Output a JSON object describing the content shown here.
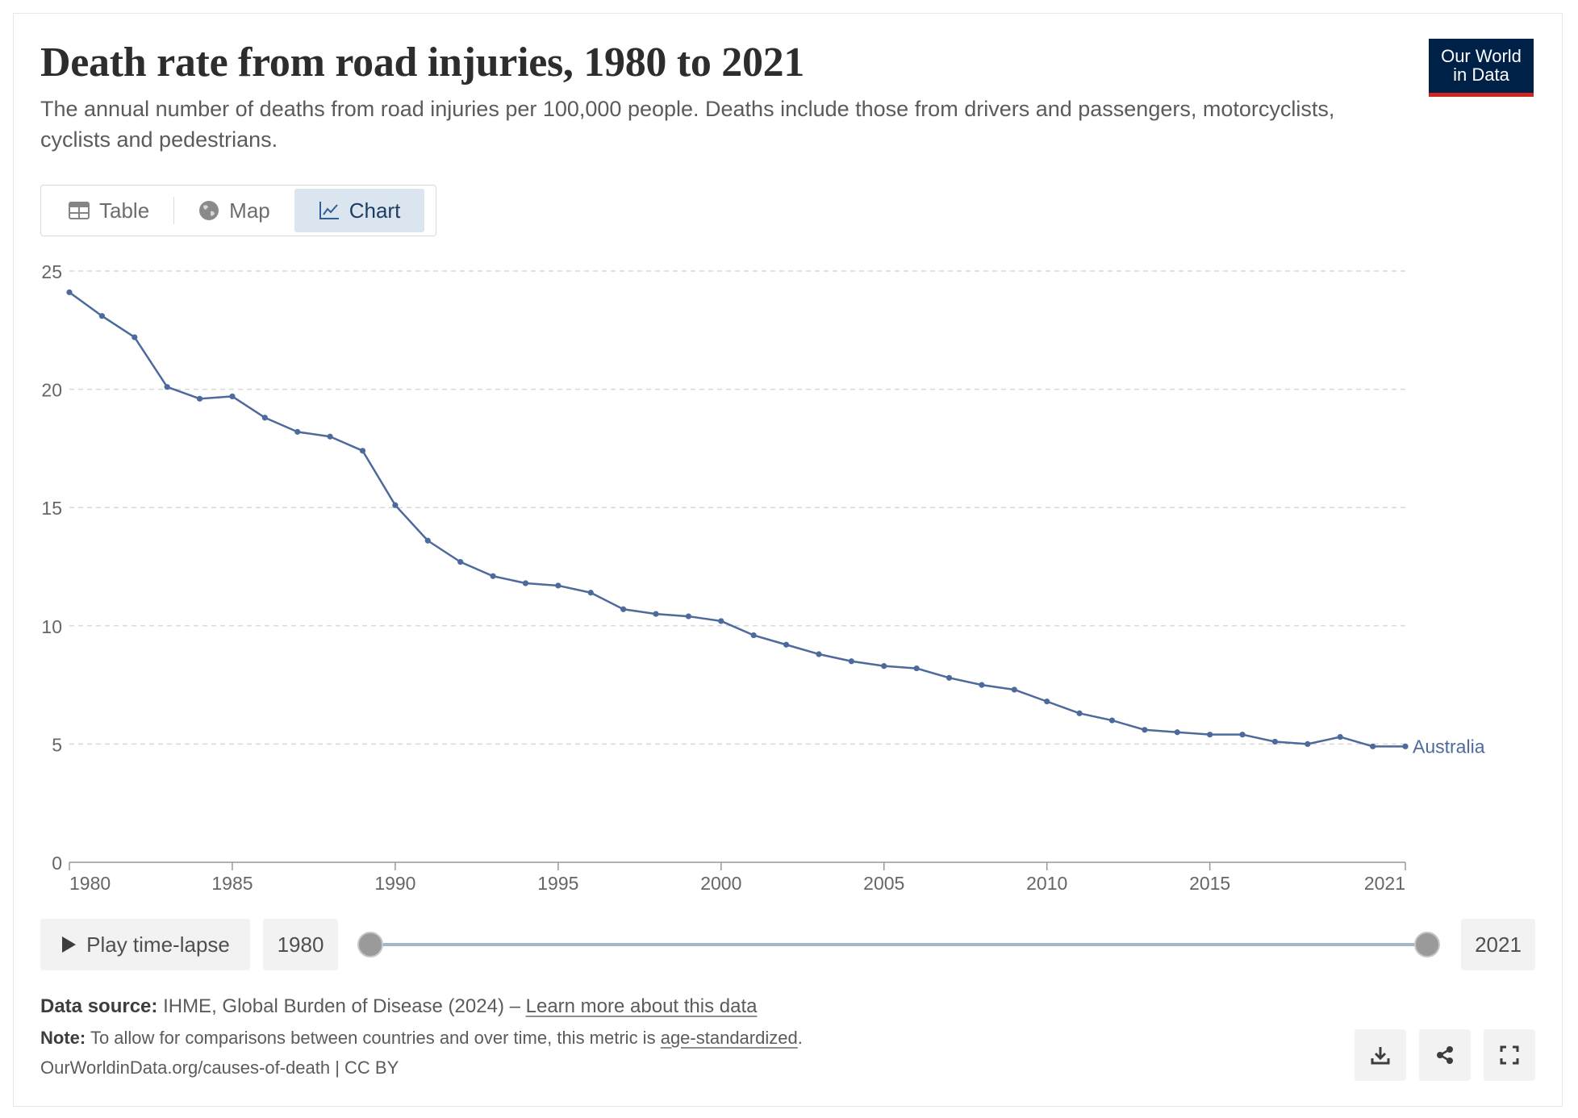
{
  "header": {
    "title": "Death rate from road injuries, 1980 to 2021",
    "subtitle": "The annual number of deaths from road injuries per 100,000 people. Deaths include those from drivers and passengers, motorcyclists, cyclists and pedestrians.",
    "logo_line1": "Our World",
    "logo_line2": "in Data"
  },
  "tabs": [
    {
      "label": "Table",
      "icon": "table-icon"
    },
    {
      "label": "Map",
      "icon": "globe-icon"
    },
    {
      "label": "Chart",
      "icon": "line-chart-icon",
      "active": true
    }
  ],
  "chart_data": {
    "type": "line",
    "title": "Death rate from road injuries, 1980 to 2021",
    "xlabel": "",
    "ylabel": "",
    "xlim": [
      1980,
      2021
    ],
    "ylim": [
      0,
      25
    ],
    "y_ticks": [
      0,
      5,
      10,
      15,
      20,
      25
    ],
    "x_ticks": [
      1980,
      1985,
      1990,
      1995,
      2000,
      2005,
      2010,
      2015,
      2021
    ],
    "grid": "horizontal dashed",
    "series": [
      {
        "name": "Australia",
        "color": "#4c6a9c",
        "x": [
          1980,
          1981,
          1982,
          1983,
          1984,
          1985,
          1986,
          1987,
          1988,
          1989,
          1990,
          1991,
          1992,
          1993,
          1994,
          1995,
          1996,
          1997,
          1998,
          1999,
          2000,
          2001,
          2002,
          2003,
          2004,
          2005,
          2006,
          2007,
          2008,
          2009,
          2010,
          2011,
          2012,
          2013,
          2014,
          2015,
          2016,
          2017,
          2018,
          2019,
          2020,
          2021
        ],
        "values": [
          24.1,
          23.1,
          22.2,
          20.1,
          19.6,
          19.7,
          18.8,
          18.2,
          18.0,
          17.4,
          15.1,
          13.6,
          12.7,
          12.1,
          11.8,
          11.7,
          11.4,
          10.7,
          10.5,
          10.4,
          10.2,
          9.6,
          9.2,
          8.8,
          8.5,
          8.3,
          8.2,
          7.8,
          7.5,
          7.3,
          6.8,
          6.3,
          6.0,
          5.6,
          5.5,
          5.4,
          5.4,
          5.1,
          5.0,
          5.3,
          4.9,
          4.9
        ]
      }
    ]
  },
  "timeline": {
    "play_label": "Play time-lapse",
    "start_year": "1980",
    "end_year": "2021"
  },
  "footer": {
    "source_label": "Data source:",
    "source_text": "IHME, Global Burden of Disease (2024) –",
    "source_link": "Learn more about this data",
    "note_label": "Note:",
    "note_text": "To allow for comparisons between countries and over time, this metric is",
    "note_link": "age-standardized",
    "note_end": ".",
    "credit": "OurWorldinData.org/causes-of-death | CC BY"
  },
  "actions": [
    {
      "icon": "download-icon"
    },
    {
      "icon": "share-icon"
    },
    {
      "icon": "fullscreen-icon"
    }
  ]
}
